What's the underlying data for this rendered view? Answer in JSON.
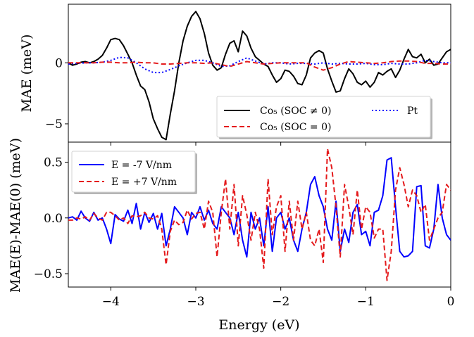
{
  "chart_data": [
    {
      "type": "line",
      "ylabel": "MAE (meV)",
      "xlim": [
        -4.5,
        0
      ],
      "ylim": [
        -6.5,
        4.8
      ],
      "yticks": [
        -5,
        0
      ],
      "yticklabels": [
        "−5",
        "0"
      ],
      "legend": {
        "position": "lower-right",
        "entries": [
          {
            "label": "Co₅ (SOC ≠ 0)",
            "color": "#000000",
            "style": "solid"
          },
          {
            "label": "Pt",
            "color": "#0000ff",
            "style": "dotted"
          },
          {
            "label": "Co₅ (SOC = 0)",
            "color": "#e41a1c",
            "style": "dashed"
          }
        ]
      },
      "series": [
        {
          "name": "Co₅ (SOC ≠ 0)",
          "color": "#000000",
          "style": "solid",
          "x": [
            -4.5,
            -4.45,
            -4.4,
            -4.35,
            -4.3,
            -4.25,
            -4.2,
            -4.15,
            -4.1,
            -4.05,
            -4.0,
            -3.95,
            -3.9,
            -3.85,
            -3.8,
            -3.75,
            -3.7,
            -3.65,
            -3.6,
            -3.55,
            -3.5,
            -3.45,
            -3.4,
            -3.35,
            -3.3,
            -3.25,
            -3.2,
            -3.15,
            -3.1,
            -3.05,
            -3.0,
            -2.95,
            -2.9,
            -2.85,
            -2.8,
            -2.75,
            -2.7,
            -2.65,
            -2.6,
            -2.55,
            -2.5,
            -2.45,
            -2.4,
            -2.35,
            -2.3,
            -2.25,
            -2.2,
            -2.15,
            -2.1,
            -2.05,
            -2.0,
            -1.95,
            -1.9,
            -1.85,
            -1.8,
            -1.75,
            -1.7,
            -1.65,
            -1.6,
            -1.55,
            -1.5,
            -1.45,
            -1.4,
            -1.35,
            -1.3,
            -1.25,
            -1.2,
            -1.15,
            -1.1,
            -1.05,
            -1.0,
            -0.95,
            -0.9,
            -0.85,
            -0.8,
            -0.75,
            -0.7,
            -0.65,
            -0.6,
            -0.55,
            -0.5,
            -0.45,
            -0.4,
            -0.35,
            -0.3,
            -0.25,
            -0.2,
            -0.15,
            -0.1,
            -0.05,
            0.0
          ],
          "y": [
            0.0,
            -0.2,
            -0.1,
            0.05,
            0.1,
            0.0,
            0.1,
            0.3,
            0.6,
            1.2,
            1.9,
            2.0,
            1.9,
            1.4,
            0.7,
            0.0,
            -1.0,
            -1.9,
            -2.2,
            -3.2,
            -4.6,
            -5.4,
            -6.1,
            -6.3,
            -4.2,
            -2.3,
            0.0,
            1.8,
            3.0,
            3.8,
            4.2,
            3.6,
            2.4,
            0.8,
            -0.2,
            -0.6,
            -0.4,
            0.7,
            1.6,
            1.8,
            0.9,
            2.6,
            2.2,
            1.2,
            0.5,
            0.2,
            -0.1,
            -0.3,
            -1.0,
            -1.6,
            -1.3,
            -0.6,
            -0.7,
            -1.1,
            -1.7,
            -1.8,
            -1.0,
            0.4,
            0.8,
            1.0,
            0.8,
            -0.5,
            -1.5,
            -2.4,
            -2.3,
            -1.3,
            -0.5,
            -0.9,
            -1.6,
            -1.8,
            -1.5,
            -2.0,
            -1.6,
            -0.8,
            -1.0,
            -0.7,
            -0.5,
            -1.2,
            -0.6,
            0.3,
            1.1,
            0.5,
            0.4,
            0.7,
            0.0,
            0.3,
            -0.2,
            -0.1,
            0.4,
            0.9,
            1.1
          ]
        },
        {
          "name": "Pt",
          "color": "#0000ff",
          "style": "dotted",
          "x": [
            -4.5,
            -4.4,
            -4.3,
            -4.2,
            -4.1,
            -4.0,
            -3.9,
            -3.8,
            -3.7,
            -3.6,
            -3.5,
            -3.4,
            -3.3,
            -3.2,
            -3.1,
            -3.0,
            -2.9,
            -2.8,
            -2.7,
            -2.6,
            -2.5,
            -2.4,
            -2.3,
            -2.2,
            -2.1,
            -2.0,
            -1.9,
            -1.8,
            -1.7,
            -1.6,
            -1.5,
            -1.4,
            -1.3,
            -1.2,
            -1.1,
            -1.0,
            -0.9,
            -0.8,
            -0.7,
            -0.6,
            -0.5,
            -0.4,
            -0.3,
            -0.2,
            -0.1,
            0.0
          ],
          "y": [
            -0.1,
            -0.05,
            0.0,
            0.0,
            0.05,
            0.2,
            0.45,
            0.4,
            0.0,
            -0.5,
            -0.8,
            -0.8,
            -0.55,
            -0.25,
            0.0,
            0.2,
            0.2,
            0.0,
            -0.3,
            -0.25,
            0.1,
            0.4,
            0.15,
            -0.1,
            0.0,
            0.0,
            -0.1,
            -0.05,
            -0.05,
            -0.1,
            0.0,
            -0.1,
            -0.05,
            -0.1,
            -0.1,
            -0.05,
            -0.15,
            -0.15,
            -0.05,
            -0.1,
            -0.1,
            0.0,
            0.2,
            0.1,
            0.0,
            0.0
          ]
        },
        {
          "name": "Co₅ (SOC = 0)",
          "color": "#e41a1c",
          "style": "dashed",
          "x": [
            -4.5,
            -4.4,
            -4.3,
            -4.2,
            -4.1,
            -4.0,
            -3.9,
            -3.8,
            -3.7,
            -3.6,
            -3.5,
            -3.4,
            -3.3,
            -3.2,
            -3.1,
            -3.0,
            -2.9,
            -2.8,
            -2.7,
            -2.6,
            -2.5,
            -2.4,
            -2.3,
            -2.2,
            -2.1,
            -2.0,
            -1.9,
            -1.8,
            -1.7,
            -1.6,
            -1.5,
            -1.4,
            -1.3,
            -1.2,
            -1.1,
            -1.0,
            -0.9,
            -0.8,
            -0.7,
            -0.6,
            -0.5,
            -0.4,
            -0.3,
            -0.2,
            -0.1,
            0.0
          ],
          "y": [
            0.0,
            0.0,
            0.0,
            0.0,
            0.05,
            0.05,
            0.0,
            0.0,
            0.05,
            0.0,
            0.0,
            -0.1,
            -0.1,
            -0.05,
            0.0,
            0.0,
            -0.05,
            0.0,
            -0.15,
            -0.3,
            -0.1,
            0.1,
            0.0,
            -0.1,
            -0.05,
            0.0,
            0.0,
            0.0,
            0.0,
            -0.35,
            -0.6,
            -0.4,
            -0.1,
            0.1,
            0.05,
            0.0,
            -0.05,
            0.0,
            0.1,
            0.15,
            0.15,
            0.1,
            -0.05,
            -0.05,
            -0.1,
            -0.1
          ]
        }
      ]
    },
    {
      "type": "line",
      "xlabel": "Energy (eV)",
      "ylabel": "MAE(E)-MAE(0) (meV)",
      "xlim": [
        -4.5,
        0
      ],
      "ylim": [
        -0.62,
        0.68
      ],
      "xticks": [
        -4,
        -3,
        -2,
        -1,
        0
      ],
      "xticklabels": [
        "−4",
        "−3",
        "−2",
        "−1",
        "0"
      ],
      "yticks": [
        -0.5,
        0.0,
        0.5
      ],
      "yticklabels": [
        "−0.5",
        "0.0",
        "0.5"
      ],
      "legend": {
        "position": "top-left",
        "entries": [
          {
            "label": "E = -7 V/nm",
            "color": "#0000ff",
            "style": "solid"
          },
          {
            "label": "E = +7 V/nm",
            "color": "#e41a1c",
            "style": "dashed"
          }
        ]
      },
      "series": [
        {
          "name": "E = -7 V/nm",
          "color": "#0000ff",
          "style": "solid",
          "x": [
            -4.5,
            -4.45,
            -4.4,
            -4.35,
            -4.3,
            -4.25,
            -4.2,
            -4.15,
            -4.1,
            -4.05,
            -4.0,
            -3.95,
            -3.9,
            -3.85,
            -3.8,
            -3.75,
            -3.7,
            -3.65,
            -3.6,
            -3.55,
            -3.5,
            -3.45,
            -3.4,
            -3.35,
            -3.3,
            -3.25,
            -3.2,
            -3.15,
            -3.1,
            -3.05,
            -3.0,
            -2.95,
            -2.9,
            -2.85,
            -2.8,
            -2.75,
            -2.7,
            -2.65,
            -2.6,
            -2.55,
            -2.5,
            -2.45,
            -2.4,
            -2.35,
            -2.3,
            -2.25,
            -2.2,
            -2.15,
            -2.1,
            -2.05,
            -2.0,
            -1.95,
            -1.9,
            -1.85,
            -1.8,
            -1.75,
            -1.7,
            -1.65,
            -1.6,
            -1.55,
            -1.5,
            -1.45,
            -1.4,
            -1.35,
            -1.3,
            -1.25,
            -1.2,
            -1.15,
            -1.1,
            -1.05,
            -1.0,
            -0.95,
            -0.9,
            -0.85,
            -0.8,
            -0.75,
            -0.7,
            -0.65,
            -0.6,
            -0.55,
            -0.5,
            -0.45,
            -0.4,
            -0.35,
            -0.3,
            -0.25,
            -0.2,
            -0.15,
            -0.1,
            -0.05,
            0.0
          ],
          "y": [
            0.0,
            0.01,
            -0.02,
            0.06,
            0.0,
            -0.03,
            0.05,
            -0.02,
            0.0,
            -0.1,
            -0.23,
            0.03,
            -0.01,
            -0.03,
            0.07,
            -0.05,
            0.13,
            -0.1,
            0.05,
            -0.04,
            0.04,
            -0.1,
            0.04,
            -0.25,
            -0.1,
            0.1,
            0.05,
            0.0,
            -0.15,
            0.05,
            0.0,
            0.1,
            -0.02,
            0.07,
            -0.05,
            -0.1,
            0.1,
            0.05,
            0.0,
            -0.15,
            0.05,
            -0.2,
            -0.35,
            0.05,
            -0.1,
            0.0,
            -0.25,
            0.1,
            -0.3,
            0.0,
            0.05,
            -0.1,
            0.0,
            -0.2,
            -0.3,
            -0.1,
            0.05,
            0.3,
            0.37,
            0.2,
            0.1,
            -0.1,
            -0.2,
            0.15,
            -0.3,
            -0.1,
            -0.22,
            0.05,
            0.12,
            -0.15,
            -0.12,
            -0.25,
            0.05,
            0.07,
            0.2,
            0.52,
            0.54,
            0.1,
            -0.3,
            -0.35,
            -0.34,
            -0.3,
            0.28,
            0.29,
            -0.25,
            -0.27,
            -0.1,
            0.3,
            0.0,
            -0.15,
            -0.2
          ]
        },
        {
          "name": "E = +7 V/nm",
          "color": "#e41a1c",
          "style": "dashed",
          "x": [
            -4.5,
            -4.45,
            -4.4,
            -4.35,
            -4.3,
            -4.25,
            -4.2,
            -4.15,
            -4.1,
            -4.05,
            -4.0,
            -3.95,
            -3.9,
            -3.85,
            -3.8,
            -3.75,
            -3.7,
            -3.65,
            -3.6,
            -3.55,
            -3.5,
            -3.45,
            -3.4,
            -3.35,
            -3.3,
            -3.25,
            -3.2,
            -3.15,
            -3.1,
            -3.05,
            -3.0,
            -2.95,
            -2.9,
            -2.85,
            -2.8,
            -2.75,
            -2.7,
            -2.65,
            -2.6,
            -2.55,
            -2.5,
            -2.45,
            -2.4,
            -2.35,
            -2.3,
            -2.25,
            -2.2,
            -2.15,
            -2.1,
            -2.05,
            -2.0,
            -1.95,
            -1.9,
            -1.85,
            -1.8,
            -1.75,
            -1.7,
            -1.65,
            -1.6,
            -1.55,
            -1.5,
            -1.45,
            -1.4,
            -1.35,
            -1.3,
            -1.25,
            -1.2,
            -1.15,
            -1.1,
            -1.05,
            -1.0,
            -0.95,
            -0.9,
            -0.85,
            -0.8,
            -0.75,
            -0.7,
            -0.65,
            -0.6,
            -0.55,
            -0.5,
            -0.45,
            -0.4,
            -0.35,
            -0.3,
            -0.25,
            -0.2,
            -0.15,
            -0.1,
            -0.05,
            0.0
          ],
          "y": [
            -0.02,
            -0.02,
            0.0,
            -0.01,
            0.01,
            -0.02,
            0.04,
            0.0,
            -0.02,
            0.05,
            0.05,
            0.02,
            -0.02,
            0.0,
            -0.05,
            0.02,
            0.01,
            0.02,
            0.05,
            0.0,
            -0.01,
            0.02,
            -0.1,
            -0.42,
            -0.12,
            -0.02,
            -0.06,
            -0.04,
            0.07,
            -0.01,
            0.04,
            0.05,
            -0.1,
            0.15,
            0.05,
            -0.35,
            0.05,
            0.35,
            -0.1,
            0.3,
            -0.25,
            0.2,
            0.03,
            -0.2,
            0.05,
            -0.1,
            -0.45,
            0.35,
            -0.15,
            0.1,
            0.2,
            -0.3,
            0.15,
            -0.2,
            0.15,
            -0.1,
            0.05,
            -0.2,
            -0.25,
            -0.1,
            -0.4,
            0.62,
            0.45,
            0.1,
            -0.35,
            0.3,
            0.1,
            -0.15,
            0.25,
            -0.1,
            0.1,
            0.05,
            -0.18,
            -0.1,
            -0.1,
            -0.56,
            -0.3,
            0.25,
            0.45,
            0.3,
            0.1,
            0.25,
            0.2,
            0.05,
            0.12,
            -0.2,
            -0.1,
            0.0,
            0.05,
            0.3,
            0.25
          ]
        }
      ]
    }
  ]
}
